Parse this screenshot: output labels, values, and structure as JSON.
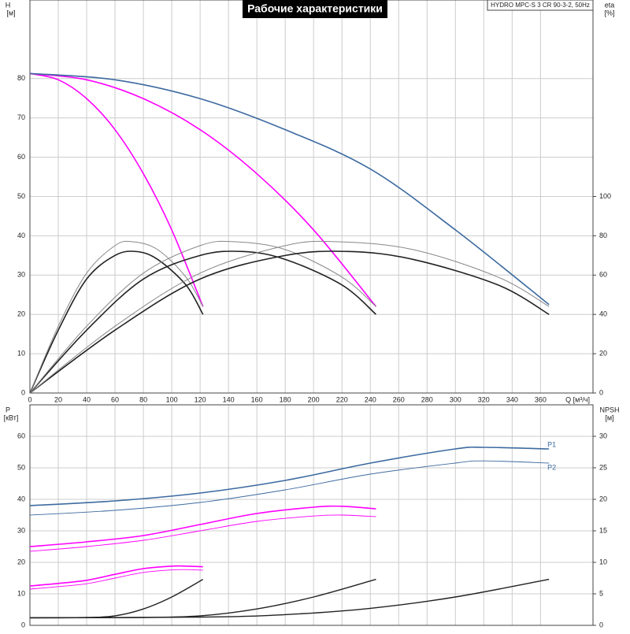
{
  "chart_data": [
    {
      "type": "line",
      "title": "Рабочие характеристики",
      "subtitle": "HYDRO MPC-S 3 CR 90-3-2, 50Hz",
      "ylabel": "H",
      "yunit": "[м]",
      "y2label": "eta",
      "y2unit": "[%]",
      "xlabel": "Q [м³/ч]",
      "xlim": [
        0,
        397
      ],
      "ylim": [
        0,
        100
      ],
      "y2lim": [
        0,
        200
      ],
      "xticks": [
        0,
        20,
        40,
        60,
        80,
        100,
        120,
        140,
        160,
        180,
        200,
        220,
        240,
        260,
        280,
        300,
        320,
        340,
        360
      ],
      "yticks": [
        0,
        10,
        20,
        30,
        40,
        50,
        60,
        70,
        80
      ],
      "y2ticks": [
        0,
        20,
        40,
        60,
        80,
        100
      ],
      "series": [
        {
          "color": "#ff00ff",
          "width": 1.6,
          "x": [
            0,
            20,
            40,
            60,
            80,
            100,
            122
          ],
          "values": [
            81.3,
            79.7,
            74.9,
            67.0,
            55.8,
            41.5,
            22.0
          ]
        },
        {
          "color": "#ff00ff",
          "width": 1.6,
          "x": [
            0,
            40,
            80,
            120,
            160,
            200,
            244
          ],
          "values": [
            81.3,
            79.7,
            74.9,
            67.0,
            55.8,
            41.5,
            22.0
          ]
        },
        {
          "color": "#3c6aa0",
          "width": 1.6,
          "x": [
            0,
            60,
            120,
            180,
            240,
            300,
            366
          ],
          "values": [
            81.3,
            79.7,
            74.9,
            67.0,
            57.0,
            41.5,
            22.5
          ]
        },
        {
          "color": "#222222",
          "width": 1.6,
          "axis": "y2",
          "x": [
            0,
            20,
            40,
            60,
            75,
            90,
            110,
            122
          ],
          "values": [
            0,
            32,
            58,
            70,
            72,
            68,
            55,
            40
          ]
        },
        {
          "color": "#888888",
          "width": 1,
          "axis": "y2",
          "x": [
            0,
            20,
            40,
            60,
            72,
            90,
            110,
            122
          ],
          "values": [
            0,
            34,
            61,
            75,
            77,
            73,
            59,
            44
          ]
        },
        {
          "color": "#222222",
          "width": 1.6,
          "axis": "y2",
          "x": [
            0,
            40,
            80,
            120,
            150,
            180,
            220,
            244
          ],
          "values": [
            0,
            32,
            58,
            70,
            72,
            68,
            55,
            40
          ]
        },
        {
          "color": "#888888",
          "width": 1,
          "axis": "y2",
          "x": [
            0,
            40,
            80,
            120,
            144,
            180,
            220,
            244
          ],
          "values": [
            0,
            34,
            61,
            75,
            77,
            73,
            59,
            44
          ]
        },
        {
          "color": "#222222",
          "width": 1.6,
          "axis": "y2",
          "x": [
            0,
            60,
            120,
            180,
            225,
            270,
            330,
            366
          ],
          "values": [
            0,
            32,
            58,
            70,
            72,
            68,
            55,
            40
          ]
        },
        {
          "color": "#888888",
          "width": 1,
          "axis": "y2",
          "x": [
            0,
            60,
            120,
            180,
            216,
            270,
            330,
            366
          ],
          "values": [
            0,
            34,
            61,
            75,
            77,
            73,
            59,
            44
          ]
        }
      ]
    },
    {
      "type": "line",
      "ylabel": "P",
      "yunit": "[кВт]",
      "y2label": "NPSH",
      "y2unit": "[м]",
      "xlim": [
        0,
        397
      ],
      "ylim": [
        0,
        70
      ],
      "y2lim": [
        0,
        35
      ],
      "xticks": [
        0,
        20,
        40,
        60,
        80,
        100,
        120,
        140,
        160,
        180,
        200,
        220,
        240,
        260,
        280,
        300,
        320,
        340,
        360
      ],
      "xtick_labels": false,
      "yticks": [
        0,
        10,
        20,
        30,
        40,
        50,
        60
      ],
      "y2ticks": [
        0,
        5,
        10,
        15,
        20,
        25,
        30
      ],
      "series": [
        {
          "name": "P1",
          "color": "#3c6aa0",
          "width": 1.6,
          "x": [
            0,
            60,
            120,
            180,
            240,
            300,
            320,
            366
          ],
          "values": [
            38,
            39.5,
            42,
            46,
            51.5,
            56,
            56.5,
            56
          ]
        },
        {
          "name": "P2",
          "color": "#3c6aa0",
          "width": 0.9,
          "x": [
            0,
            60,
            120,
            180,
            240,
            300,
            320,
            366
          ],
          "values": [
            35,
            36.5,
            39,
            43,
            48,
            51.5,
            52.2,
            51.5
          ]
        },
        {
          "color": "#ff00ff",
          "width": 1.6,
          "x": [
            0,
            40,
            80,
            120,
            160,
            200,
            220,
            244
          ],
          "values": [
            25,
            26.5,
            28.5,
            32,
            35.5,
            37.5,
            37.8,
            37
          ]
        },
        {
          "color": "#ff00ff",
          "width": 0.9,
          "x": [
            0,
            40,
            80,
            120,
            160,
            200,
            220,
            244
          ],
          "values": [
            23.5,
            25,
            27,
            30,
            33,
            34.7,
            35,
            34.5
          ]
        },
        {
          "color": "#ff00ff",
          "width": 1.6,
          "x": [
            0,
            20,
            40,
            60,
            80,
            100,
            110,
            122
          ],
          "values": [
            12.5,
            13.3,
            14.3,
            16.2,
            18,
            18.8,
            18.8,
            18.6
          ]
        },
        {
          "color": "#ff00ff",
          "width": 0.9,
          "x": [
            0,
            20,
            40,
            60,
            80,
            100,
            110,
            122
          ],
          "values": [
            11.5,
            12.3,
            13.2,
            15,
            16.8,
            17.6,
            17.7,
            17.5
          ]
        },
        {
          "color": "#222222",
          "width": 1.4,
          "axis": "y2",
          "x": [
            0,
            40,
            60,
            80,
            100,
            122
          ],
          "values": [
            1.2,
            1.25,
            1.5,
            2.6,
            4.5,
            7.3
          ]
        },
        {
          "color": "#222222",
          "width": 1.4,
          "axis": "y2",
          "x": [
            0,
            80,
            120,
            160,
            200,
            244
          ],
          "values": [
            1.2,
            1.25,
            1.5,
            2.6,
            4.5,
            7.3
          ]
        },
        {
          "color": "#222222",
          "width": 1.4,
          "axis": "y2",
          "x": [
            0,
            120,
            180,
            240,
            300,
            366
          ],
          "values": [
            1.2,
            1.3,
            1.7,
            2.7,
            4.5,
            7.3
          ]
        }
      ]
    }
  ]
}
